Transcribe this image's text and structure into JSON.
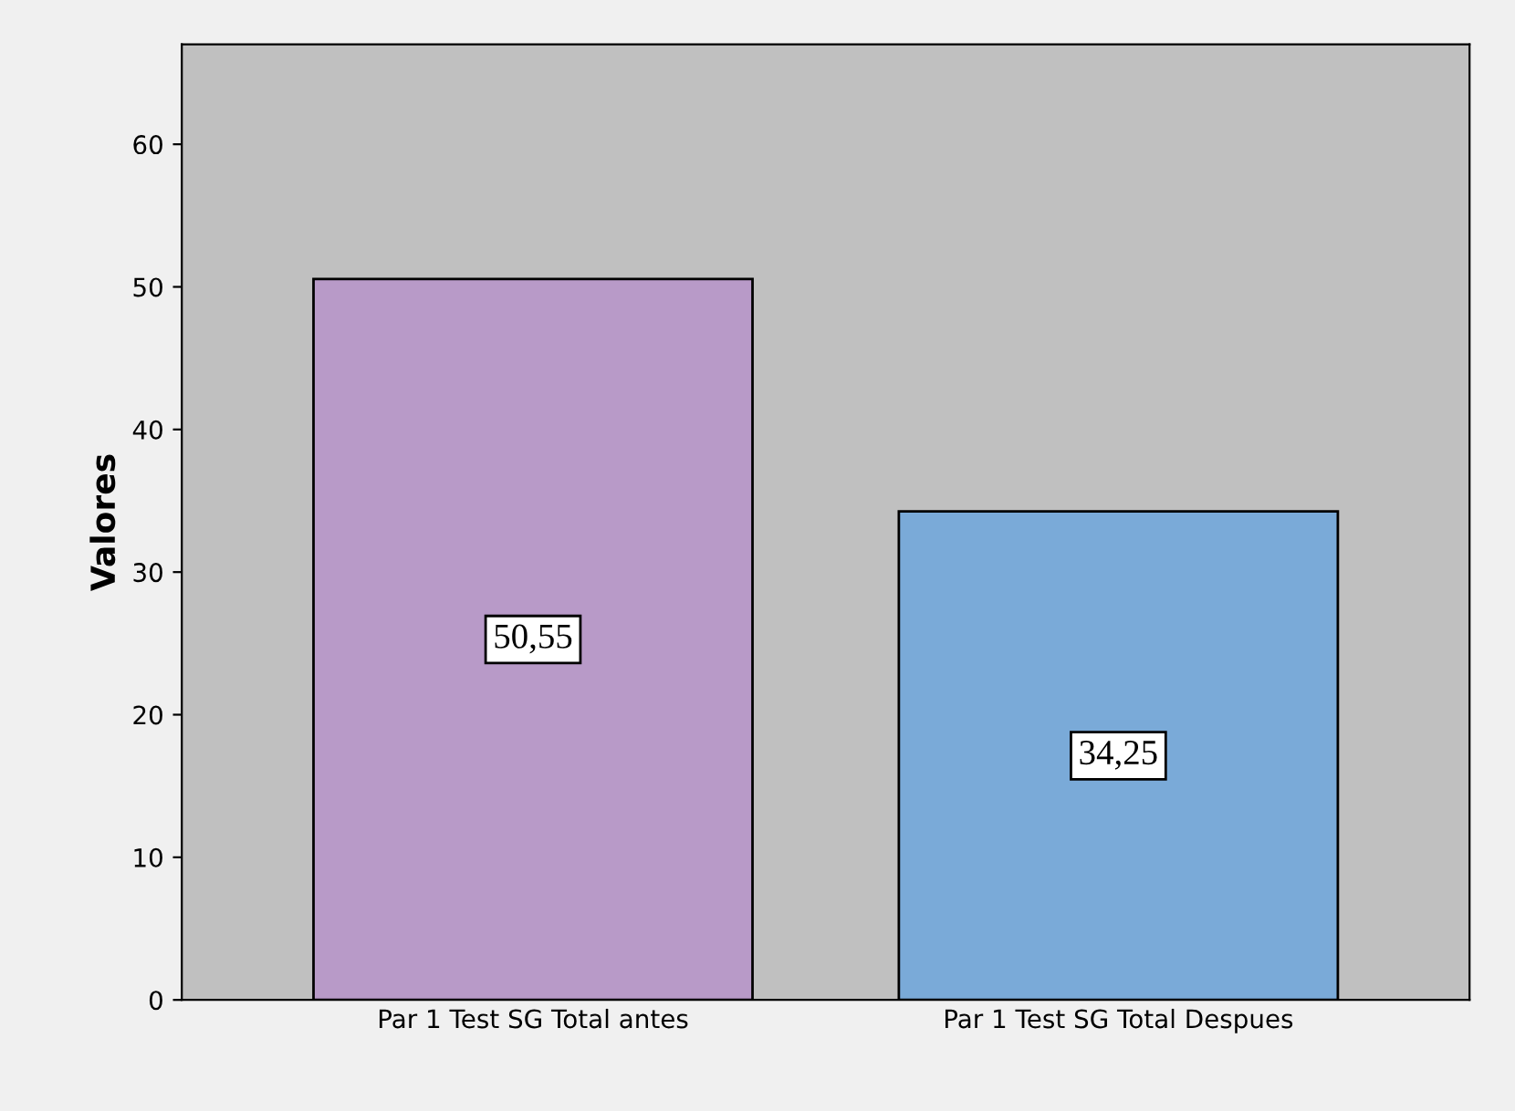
{
  "chart_data": {
    "type": "bar",
    "ylabel": "Valores",
    "categories": [
      "Par 1 Test SG Total antes",
      "Par 1 Test SG Total Despues"
    ],
    "values": [
      50.55,
      34.25
    ],
    "colors": [
      "#b89ac8",
      "#7aaad8"
    ],
    "value_labels": [
      "50,55",
      "34,25"
    ],
    "ylim": [
      0,
      67
    ],
    "yticks": [
      0,
      10,
      20,
      30,
      40,
      50,
      60
    ],
    "grid": false,
    "legend": false
  }
}
